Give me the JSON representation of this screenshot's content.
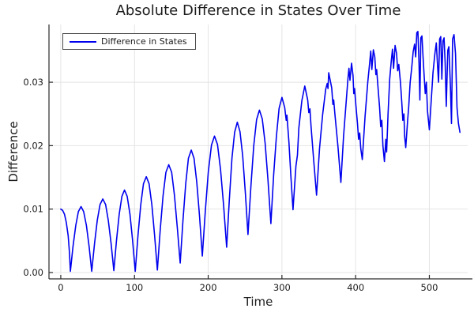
{
  "title": "Absolute Difference in States Over Time",
  "chart_data": {
    "type": "line",
    "title": "Absolute Difference in States Over Time",
    "xlabel": "Time",
    "ylabel": "Difference",
    "grid": true,
    "legend_position": "top-left",
    "xlim": [
      -16,
      552
    ],
    "ylim": [
      -0.001,
      0.0391
    ],
    "xticks": {
      "values": [
        0,
        100,
        200,
        300,
        400,
        500
      ],
      "labels": [
        "0",
        "100",
        "200",
        "300",
        "400",
        "500"
      ]
    },
    "yticks": {
      "values": [
        0,
        0.01,
        0.02,
        0.03
      ],
      "labels": [
        "0.00",
        "0.01",
        "0.02",
        "0.03"
      ]
    },
    "series": [
      {
        "name": "Difference in States",
        "color": "#0000ee",
        "t": [
          0,
          2.5,
          5,
          7.5,
          10,
          11.8,
          13,
          16.6,
          20.3,
          23.9,
          27.5,
          31.1,
          34.8,
          38.4,
          42,
          45.8,
          49.5,
          53.2,
          57,
          60.8,
          64.5,
          68.2,
          72,
          75.6,
          79.3,
          82.9,
          86.5,
          90.1,
          93.8,
          97.4,
          101,
          104.8,
          108.5,
          112.2,
          116,
          119.8,
          123.5,
          127.2,
          131,
          134.9,
          138.8,
          142.6,
          146.5,
          150.4,
          154.2,
          158.1,
          162,
          165.8,
          169.5,
          173.2,
          177,
          180.8,
          184.5,
          188.2,
          192,
          196.1,
          200.2,
          204.4,
          208.5,
          212.6,
          216.8,
          220.9,
          225,
          228.6,
          232.2,
          235.9,
          239.5,
          243.1,
          246.8,
          250.4,
          254,
          257.9,
          261.8,
          265.6,
          269.5,
          273.4,
          277.2,
          281.1,
          285,
          288.8,
          292.5,
          296.2,
          300,
          303.8,
          305.8,
          306.8,
          309.5,
          312.2,
          315,
          319,
          321,
          323,
          327,
          331,
          335,
          336.5,
          338,
          339.5,
          343,
          347,
          351.1,
          355.2,
          359.4,
          361.5,
          362.5,
          363.5,
          367.6,
          369.2,
          370.2,
          371.8,
          375.9,
          380,
          383.6,
          387.2,
          389.5,
          390.9,
          392.3,
          394.5,
          396.5,
          397.5,
          398.5,
          400.5,
          402.5,
          404,
          405.5,
          407,
          409,
          412.8,
          416.5,
          419,
          420.5,
          422,
          424,
          426,
          427.5,
          428.5,
          430.5,
          432.5,
          434,
          435.5,
          437,
          439,
          441,
          442,
          444,
          446.2,
          448.5,
          450,
          451.5,
          453.5,
          455.5,
          457,
          458.5,
          460.8,
          462.5,
          464,
          465.5,
          466.5,
          468,
          470.5,
          472,
          474,
          476,
          478,
          480,
          481.5,
          483,
          484.5,
          486,
          487.2,
          488.5,
          490,
          491.5,
          493,
          494.5,
          496,
          497.5,
          500,
          502.5,
          505,
          507.5,
          509.5,
          511,
          512.5,
          514,
          515.5,
          517,
          518.5,
          520,
          521.5,
          523,
          525,
          526.5,
          528.5,
          530,
          531.5,
          533.5,
          535.5,
          537.5,
          539.5,
          541.5
        ],
        "v": [
          0.01,
          0.0098,
          0.0092,
          0.0079,
          0.0058,
          0.0032,
          0.0002,
          0.0041,
          0.0074,
          0.0096,
          0.0104,
          0.0096,
          0.0074,
          0.0041,
          0.0002,
          0.0046,
          0.0082,
          0.0107,
          0.0116,
          0.0107,
          0.0082,
          0.0046,
          0.0003,
          0.0051,
          0.0092,
          0.012,
          0.013,
          0.012,
          0.0092,
          0.0051,
          0.0002,
          0.0059,
          0.0107,
          0.014,
          0.0151,
          0.014,
          0.0107,
          0.006,
          0.0004,
          0.0067,
          0.0121,
          0.0158,
          0.017,
          0.0158,
          0.0122,
          0.007,
          0.0015,
          0.0082,
          0.014,
          0.018,
          0.0193,
          0.018,
          0.0142,
          0.009,
          0.0026,
          0.0097,
          0.0159,
          0.0201,
          0.0215,
          0.0202,
          0.0162,
          0.0105,
          0.004,
          0.0113,
          0.018,
          0.0221,
          0.0237,
          0.0222,
          0.0184,
          0.0125,
          0.006,
          0.0136,
          0.02,
          0.0241,
          0.0256,
          0.0242,
          0.0204,
          0.0146,
          0.0077,
          0.0154,
          0.0215,
          0.0259,
          0.0276,
          0.026,
          0.024,
          0.0248,
          0.0206,
          0.0152,
          0.0099,
          0.0168,
          0.0185,
          0.0228,
          0.0271,
          0.0294,
          0.0272,
          0.0252,
          0.0258,
          0.0231,
          0.0178,
          0.0122,
          0.0196,
          0.0249,
          0.0289,
          0.0298,
          0.029,
          0.0315,
          0.0291,
          0.0265,
          0.0272,
          0.025,
          0.02,
          0.0142,
          0.0215,
          0.0269,
          0.0305,
          0.0322,
          0.0303,
          0.033,
          0.031,
          0.0282,
          0.029,
          0.0262,
          0.0235,
          0.021,
          0.022,
          0.0195,
          0.0178,
          0.0246,
          0.0301,
          0.033,
          0.0349,
          0.032,
          0.0351,
          0.034,
          0.0312,
          0.032,
          0.029,
          0.026,
          0.023,
          0.024,
          0.02,
          0.0175,
          0.021,
          0.019,
          0.025,
          0.0305,
          0.0335,
          0.0352,
          0.0322,
          0.0358,
          0.0345,
          0.0318,
          0.0328,
          0.03,
          0.027,
          0.024,
          0.025,
          0.0215,
          0.0197,
          0.024,
          0.0262,
          0.03,
          0.0322,
          0.0348,
          0.036,
          0.034,
          0.0378,
          0.038,
          0.033,
          0.0272,
          0.037,
          0.0373,
          0.034,
          0.031,
          0.0282,
          0.03,
          0.0255,
          0.0225,
          0.027,
          0.0315,
          0.0345,
          0.0362,
          0.033,
          0.03,
          0.0368,
          0.0372,
          0.0305,
          0.0365,
          0.037,
          0.033,
          0.0262,
          0.035,
          0.0356,
          0.0295,
          0.0235,
          0.0368,
          0.0375,
          0.0345,
          0.026,
          0.0235,
          0.0221
        ]
      }
    ]
  },
  "legend": {
    "entries": [
      {
        "label": "Difference in States",
        "color": "#0000ee"
      }
    ]
  },
  "colors": {
    "line": "#0000ee",
    "grid": "#e4e4e4",
    "axis": "#2a2a2a",
    "text": "#1c1c1c",
    "background": "#ffffff"
  }
}
